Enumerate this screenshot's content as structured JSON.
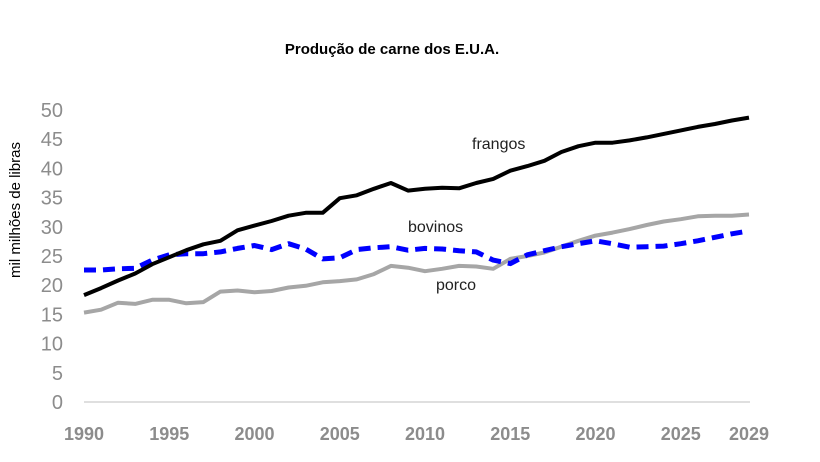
{
  "chart_data": {
    "type": "line",
    "title": "Produção de carne dos E.U.A.",
    "xlabel": "",
    "ylabel": "mil milhões de libras",
    "xlim": [
      1990,
      2029
    ],
    "ylim": [
      0,
      50
    ],
    "yticks": [
      "0",
      "5",
      "10",
      "15",
      "20",
      "25",
      "30",
      "35",
      "40",
      "45",
      "50"
    ],
    "xticks": [
      "1990",
      "1995",
      "2000",
      "2005",
      "2010",
      "2015",
      "2020",
      "2025",
      "2029"
    ],
    "grid": false,
    "x": [
      1990,
      1991,
      1992,
      1993,
      1994,
      1995,
      1996,
      1997,
      1998,
      1999,
      2000,
      2001,
      2002,
      2003,
      2004,
      2005,
      2006,
      2007,
      2008,
      2009,
      2010,
      2011,
      2012,
      2013,
      2014,
      2015,
      2016,
      2017,
      2018,
      2019,
      2020,
      2021,
      2022,
      2023,
      2024,
      2025,
      2026,
      2027,
      2028,
      2029
    ],
    "series": [
      {
        "name": "frangos",
        "color": "#000000",
        "style": "solid",
        "values": [
          18.3,
          19.5,
          20.8,
          22.0,
          23.6,
          24.8,
          26.0,
          27.0,
          27.6,
          29.4,
          30.2,
          31.0,
          31.9,
          32.4,
          32.4,
          34.9,
          35.4,
          36.5,
          37.5,
          36.2,
          36.5,
          36.7,
          36.6,
          37.5,
          38.2,
          39.6,
          40.4,
          41.3,
          42.8,
          43.8,
          44.4,
          44.4,
          44.8,
          45.3,
          45.9,
          46.5,
          47.1,
          47.6,
          48.2,
          48.7
        ]
      },
      {
        "name": "bovinos",
        "color": "#0000ff",
        "style": "dashed",
        "values": [
          22.6,
          22.6,
          22.8,
          22.9,
          24.3,
          25.2,
          25.4,
          25.4,
          25.7,
          26.3,
          26.8,
          26.1,
          27.1,
          26.2,
          24.5,
          24.7,
          26.1,
          26.4,
          26.6,
          26.0,
          26.3,
          26.2,
          25.9,
          25.7,
          24.3,
          23.7,
          25.2,
          25.9,
          26.6,
          27.1,
          27.6,
          27.1,
          26.5,
          26.6,
          26.7,
          27.1,
          27.6,
          28.2,
          28.8,
          29.3
        ]
      },
      {
        "name": "porco",
        "color": "#a6a6a6",
        "style": "solid",
        "values": [
          15.3,
          15.8,
          17.0,
          16.8,
          17.5,
          17.5,
          16.9,
          17.1,
          18.9,
          19.1,
          18.8,
          19.0,
          19.6,
          19.9,
          20.5,
          20.7,
          21.0,
          21.9,
          23.3,
          23.0,
          22.4,
          22.8,
          23.3,
          23.2,
          22.8,
          24.5,
          25.0,
          25.6,
          26.6,
          27.6,
          28.5,
          29.0,
          29.6,
          30.3,
          30.9,
          31.3,
          31.8,
          31.9,
          31.9,
          32.1
        ]
      }
    ],
    "annotations": [
      "frangos",
      "bovinos",
      "porco"
    ]
  }
}
